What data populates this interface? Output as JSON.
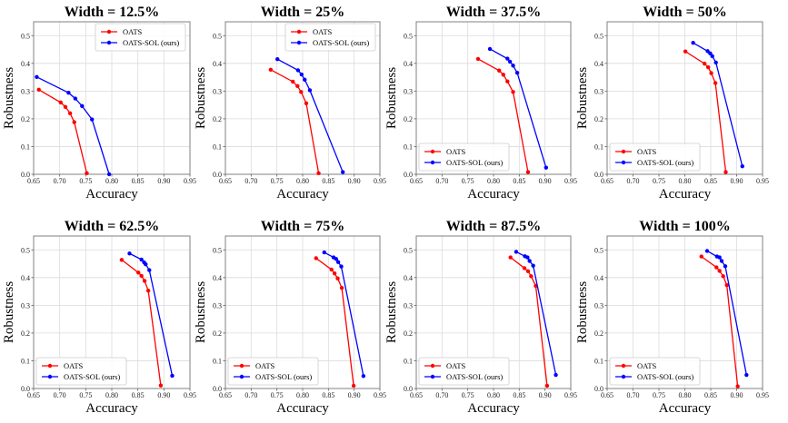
{
  "figure": {
    "xlabel": "Accuracy",
    "ylabel": "Robustness"
  },
  "chart_data": [
    {
      "type": "line",
      "title": "Width = 12.5%",
      "xlabel": "Accuracy",
      "ylabel": "Robustness",
      "xlim": [
        0.65,
        0.95
      ],
      "ylim": [
        0,
        0.55
      ],
      "xticks": [
        "0.65",
        "0.70",
        "0.75",
        "0.80",
        "0.85",
        "0.90",
        "0.95"
      ],
      "yticks": [
        "0.0",
        "0.1",
        "0.2",
        "0.3",
        "0.4",
        "0.5"
      ],
      "grid": true,
      "legend": "upper right",
      "series": [
        {
          "name": "OATS",
          "color": "#ff0000",
          "x": [
            0.66,
            0.702,
            0.711,
            0.72,
            0.728,
            0.752
          ],
          "y": [
            0.305,
            0.259,
            0.243,
            0.22,
            0.188,
            0.004
          ]
        },
        {
          "name": "OATS-SOL (ours)",
          "color": "#0000ff",
          "x": [
            0.656,
            0.717,
            0.73,
            0.743,
            0.762,
            0.795
          ],
          "y": [
            0.351,
            0.294,
            0.273,
            0.246,
            0.198,
            0.0
          ]
        }
      ]
    },
    {
      "type": "line",
      "title": "Width = 25%",
      "xlabel": "Accuracy",
      "ylabel": "Robustness",
      "xlim": [
        0.65,
        0.95
      ],
      "ylim": [
        0,
        0.55
      ],
      "xticks": [
        "0.65",
        "0.70",
        "0.75",
        "0.80",
        "0.85",
        "0.90",
        "0.95"
      ],
      "yticks": [
        "0.0",
        "0.1",
        "0.2",
        "0.3",
        "0.4",
        "0.5"
      ],
      "grid": true,
      "legend": "upper right",
      "series": [
        {
          "name": "OATS",
          "color": "#ff0000",
          "x": [
            0.738,
            0.781,
            0.79,
            0.797,
            0.807,
            0.831
          ],
          "y": [
            0.377,
            0.334,
            0.318,
            0.297,
            0.256,
            0.004
          ]
        },
        {
          "name": "OATS-SOL (ours)",
          "color": "#0000ff",
          "x": [
            0.751,
            0.791,
            0.798,
            0.804,
            0.814,
            0.878
          ],
          "y": [
            0.415,
            0.375,
            0.36,
            0.341,
            0.303,
            0.008
          ]
        }
      ]
    },
    {
      "type": "line",
      "title": "Width = 37.5%",
      "xlabel": "Accuracy",
      "ylabel": "Robustness",
      "xlim": [
        0.65,
        0.95
      ],
      "ylim": [
        0,
        0.55
      ],
      "xticks": [
        "0.65",
        "0.70",
        "0.75",
        "0.80",
        "0.85",
        "0.90",
        "0.95"
      ],
      "yticks": [
        "0.0",
        "0.1",
        "0.2",
        "0.3",
        "0.4",
        "0.5"
      ],
      "grid": true,
      "legend": "lower left",
      "series": [
        {
          "name": "OATS",
          "color": "#ff0000",
          "x": [
            0.77,
            0.811,
            0.819,
            0.827,
            0.838,
            0.867
          ],
          "y": [
            0.416,
            0.374,
            0.359,
            0.335,
            0.297,
            0.008
          ]
        },
        {
          "name": "OATS-SOL (ours)",
          "color": "#0000ff",
          "x": [
            0.793,
            0.827,
            0.832,
            0.838,
            0.846,
            0.902
          ],
          "y": [
            0.452,
            0.417,
            0.406,
            0.392,
            0.366,
            0.024
          ]
        }
      ]
    },
    {
      "type": "line",
      "title": "Width = 50%",
      "xlabel": "Accuracy",
      "ylabel": "Robustness",
      "xlim": [
        0.65,
        0.95
      ],
      "ylim": [
        0,
        0.55
      ],
      "xticks": [
        "0.65",
        "0.70",
        "0.75",
        "0.80",
        "0.85",
        "0.90",
        "0.95"
      ],
      "yticks": [
        "0.0",
        "0.1",
        "0.2",
        "0.3",
        "0.4",
        "0.5"
      ],
      "grid": true,
      "legend": "lower left",
      "series": [
        {
          "name": "OATS",
          "color": "#ff0000",
          "x": [
            0.801,
            0.838,
            0.845,
            0.851,
            0.859,
            0.879
          ],
          "y": [
            0.443,
            0.399,
            0.386,
            0.365,
            0.329,
            0.008
          ]
        },
        {
          "name": "OATS-SOL (ours)",
          "color": "#0000ff",
          "x": [
            0.816,
            0.844,
            0.849,
            0.853,
            0.86,
            0.911
          ],
          "y": [
            0.474,
            0.444,
            0.436,
            0.426,
            0.403,
            0.029
          ]
        }
      ]
    },
    {
      "type": "line",
      "title": "Width = 62.5%",
      "xlabel": "Accuracy",
      "ylabel": "Robustness",
      "xlim": [
        0.65,
        0.95
      ],
      "ylim": [
        0,
        0.55
      ],
      "xticks": [
        "0.65",
        "0.70",
        "0.75",
        "0.80",
        "0.85",
        "0.90",
        "0.95"
      ],
      "yticks": [
        "0.0",
        "0.1",
        "0.2",
        "0.3",
        "0.4",
        "0.5"
      ],
      "grid": true,
      "legend": "lower left",
      "series": [
        {
          "name": "OATS",
          "color": "#ff0000",
          "x": [
            0.819,
            0.851,
            0.857,
            0.863,
            0.87,
            0.894
          ],
          "y": [
            0.464,
            0.418,
            0.406,
            0.388,
            0.353,
            0.011
          ]
        },
        {
          "name": "OATS-SOL (ours)",
          "color": "#0000ff",
          "x": [
            0.834,
            0.857,
            0.862,
            0.865,
            0.872,
            0.916
          ],
          "y": [
            0.487,
            0.465,
            0.455,
            0.448,
            0.427,
            0.046
          ]
        }
      ]
    },
    {
      "type": "line",
      "title": "Width = 75%",
      "xlabel": "Accuracy",
      "ylabel": "Robustness",
      "xlim": [
        0.65,
        0.95
      ],
      "ylim": [
        0,
        0.55
      ],
      "xticks": [
        "0.65",
        "0.70",
        "0.75",
        "0.80",
        "0.85",
        "0.90",
        "0.95"
      ],
      "yticks": [
        "0.0",
        "0.1",
        "0.2",
        "0.3",
        "0.4",
        "0.5"
      ],
      "grid": true,
      "legend": "lower left",
      "series": [
        {
          "name": "OATS",
          "color": "#ff0000",
          "x": [
            0.826,
            0.856,
            0.862,
            0.868,
            0.876,
            0.899
          ],
          "y": [
            0.47,
            0.429,
            0.415,
            0.397,
            0.363,
            0.01
          ]
        },
        {
          "name": "OATS-SOL (ours)",
          "color": "#0000ff",
          "x": [
            0.842,
            0.86,
            0.865,
            0.869,
            0.875,
            0.918
          ],
          "y": [
            0.491,
            0.473,
            0.467,
            0.456,
            0.44,
            0.045
          ]
        }
      ]
    },
    {
      "type": "line",
      "title": "Width = 87.5%",
      "xlabel": "Accuracy",
      "ylabel": "Robustness",
      "xlim": [
        0.65,
        0.95
      ],
      "ylim": [
        0,
        0.55
      ],
      "xticks": [
        "0.65",
        "0.70",
        "0.75",
        "0.80",
        "0.85",
        "0.90",
        "0.95"
      ],
      "yticks": [
        "0.0",
        "0.1",
        "0.2",
        "0.3",
        "0.4",
        "0.5"
      ],
      "grid": true,
      "legend": "lower left",
      "series": [
        {
          "name": "OATS",
          "color": "#ff0000",
          "x": [
            0.833,
            0.86,
            0.867,
            0.873,
            0.882,
            0.904
          ],
          "y": [
            0.473,
            0.434,
            0.423,
            0.405,
            0.37,
            0.01
          ]
        },
        {
          "name": "OATS-SOL (ours)",
          "color": "#0000ff",
          "x": [
            0.844,
            0.861,
            0.866,
            0.87,
            0.877,
            0.921
          ],
          "y": [
            0.493,
            0.477,
            0.473,
            0.46,
            0.443,
            0.049
          ]
        }
      ]
    },
    {
      "type": "line",
      "title": "Width = 100%",
      "xlabel": "Accuracy",
      "ylabel": "Robustness",
      "xlim": [
        0.65,
        0.95
      ],
      "ylim": [
        0,
        0.55
      ],
      "xticks": [
        "0.65",
        "0.70",
        "0.75",
        "0.80",
        "0.85",
        "0.90",
        "0.95"
      ],
      "yticks": [
        "0.0",
        "0.1",
        "0.2",
        "0.3",
        "0.4",
        "0.5"
      ],
      "grid": true,
      "legend": "lower left",
      "series": [
        {
          "name": "OATS",
          "color": "#ff0000",
          "x": [
            0.832,
            0.861,
            0.867,
            0.874,
            0.881,
            0.902
          ],
          "y": [
            0.476,
            0.437,
            0.424,
            0.405,
            0.373,
            0.008
          ]
        },
        {
          "name": "OATS-SOL (ours)",
          "color": "#0000ff",
          "x": [
            0.843,
            0.862,
            0.867,
            0.871,
            0.878,
            0.919
          ],
          "y": [
            0.496,
            0.476,
            0.473,
            0.46,
            0.441,
            0.049
          ]
        }
      ]
    }
  ]
}
